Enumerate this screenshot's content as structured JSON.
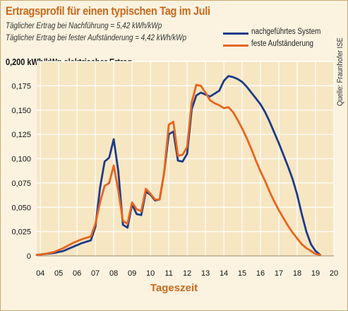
{
  "title": "Ertragsprofil für einen typischen Tag im Juli",
  "subtitle_lines": [
    "Täglicher Ertrag bei Nachführung = 5,42 kWh/kWp",
    "Täglicher Ertrag bei fester Aufständerung = 4,42 kWh/kWp"
  ],
  "source": "Quelle: Fraunhofer ISE",
  "colors": {
    "tracked": "#1d3a8a",
    "fixed": "#e8641e",
    "title": "#c86a1e",
    "background": "#fbf3e0",
    "grid": "#ffffff"
  },
  "chart_data": {
    "type": "line",
    "title": "Ertragsprofil für einen typischen Tag im Juli",
    "xlabel": "Tageszeit",
    "ylabel": "kWh/kWp elektrischer Ertrag",
    "xlim": [
      3.8,
      20
    ],
    "ylim": [
      0,
      0.2
    ],
    "x_ticks": [
      4,
      5,
      6,
      7,
      8,
      9,
      10,
      11,
      12,
      13,
      14,
      15,
      16,
      17,
      18,
      19,
      20
    ],
    "x_tick_labels": [
      "04",
      "05",
      "06",
      "07",
      "08",
      "09",
      "10",
      "11",
      "12",
      "13",
      "14",
      "15",
      "16",
      "17",
      "18",
      "19",
      "20"
    ],
    "y_ticks": [
      0,
      0.025,
      0.05,
      0.075,
      0.1,
      0.125,
      0.15,
      0.175,
      0.2
    ],
    "y_tick_labels": [
      "0",
      "0,025",
      "0,050",
      "0,075",
      "0,100",
      "0,125",
      "0,150",
      "0,175",
      "0,200"
    ],
    "grid": true,
    "legend": "top-right",
    "series": [
      {
        "name": "nachgeführtes System",
        "color": "#1d3a8a",
        "x": [
          3.8,
          4.25,
          4.75,
          5.25,
          5.75,
          6.25,
          6.75,
          7.0,
          7.25,
          7.5,
          7.75,
          8.0,
          8.25,
          8.5,
          8.75,
          9.0,
          9.25,
          9.5,
          9.75,
          10.0,
          10.25,
          10.5,
          10.75,
          11.0,
          11.25,
          11.5,
          11.75,
          12.0,
          12.25,
          12.5,
          12.75,
          13.0,
          13.25,
          13.5,
          13.75,
          14.0,
          14.25,
          14.5,
          14.75,
          15.0,
          15.25,
          15.5,
          15.75,
          16.0,
          16.25,
          16.5,
          16.75,
          17.0,
          17.25,
          17.5,
          17.75,
          18.0,
          18.25,
          18.5,
          18.75,
          19.0,
          19.25
        ],
        "y": [
          0.001,
          0.002,
          0.003,
          0.005,
          0.009,
          0.013,
          0.016,
          0.03,
          0.07,
          0.097,
          0.101,
          0.12,
          0.087,
          0.032,
          0.029,
          0.053,
          0.043,
          0.042,
          0.066,
          0.063,
          0.057,
          0.058,
          0.086,
          0.125,
          0.128,
          0.098,
          0.097,
          0.105,
          0.151,
          0.165,
          0.168,
          0.166,
          0.164,
          0.167,
          0.17,
          0.18,
          0.185,
          0.184,
          0.182,
          0.179,
          0.174,
          0.168,
          0.162,
          0.156,
          0.148,
          0.138,
          0.127,
          0.116,
          0.104,
          0.092,
          0.079,
          0.063,
          0.043,
          0.025,
          0.012,
          0.005,
          0.001
        ]
      },
      {
        "name": "feste Aufständerung",
        "color": "#e8641e",
        "x": [
          3.8,
          4.25,
          4.75,
          5.25,
          5.75,
          6.25,
          6.75,
          7.0,
          7.25,
          7.5,
          7.75,
          8.0,
          8.25,
          8.5,
          8.75,
          9.0,
          9.25,
          9.5,
          9.75,
          10.0,
          10.25,
          10.5,
          10.75,
          11.0,
          11.25,
          11.5,
          11.75,
          12.0,
          12.25,
          12.5,
          12.75,
          13.0,
          13.25,
          13.5,
          13.75,
          14.0,
          14.25,
          14.5,
          14.75,
          15.0,
          15.25,
          15.5,
          15.75,
          16.0,
          16.25,
          16.5,
          16.75,
          17.0,
          17.25,
          17.5,
          17.75,
          18.0,
          18.25,
          18.5,
          18.75,
          19.0,
          19.25
        ],
        "y": [
          0.001,
          0.002,
          0.004,
          0.008,
          0.013,
          0.017,
          0.02,
          0.033,
          0.055,
          0.072,
          0.075,
          0.093,
          0.067,
          0.036,
          0.033,
          0.055,
          0.048,
          0.046,
          0.069,
          0.064,
          0.058,
          0.058,
          0.086,
          0.135,
          0.138,
          0.103,
          0.104,
          0.112,
          0.158,
          0.176,
          0.175,
          0.168,
          0.16,
          0.157,
          0.155,
          0.152,
          0.153,
          0.148,
          0.14,
          0.131,
          0.121,
          0.11,
          0.098,
          0.087,
          0.077,
          0.066,
          0.056,
          0.047,
          0.039,
          0.031,
          0.024,
          0.018,
          0.012,
          0.008,
          0.005,
          0.002,
          0.001
        ]
      }
    ]
  }
}
